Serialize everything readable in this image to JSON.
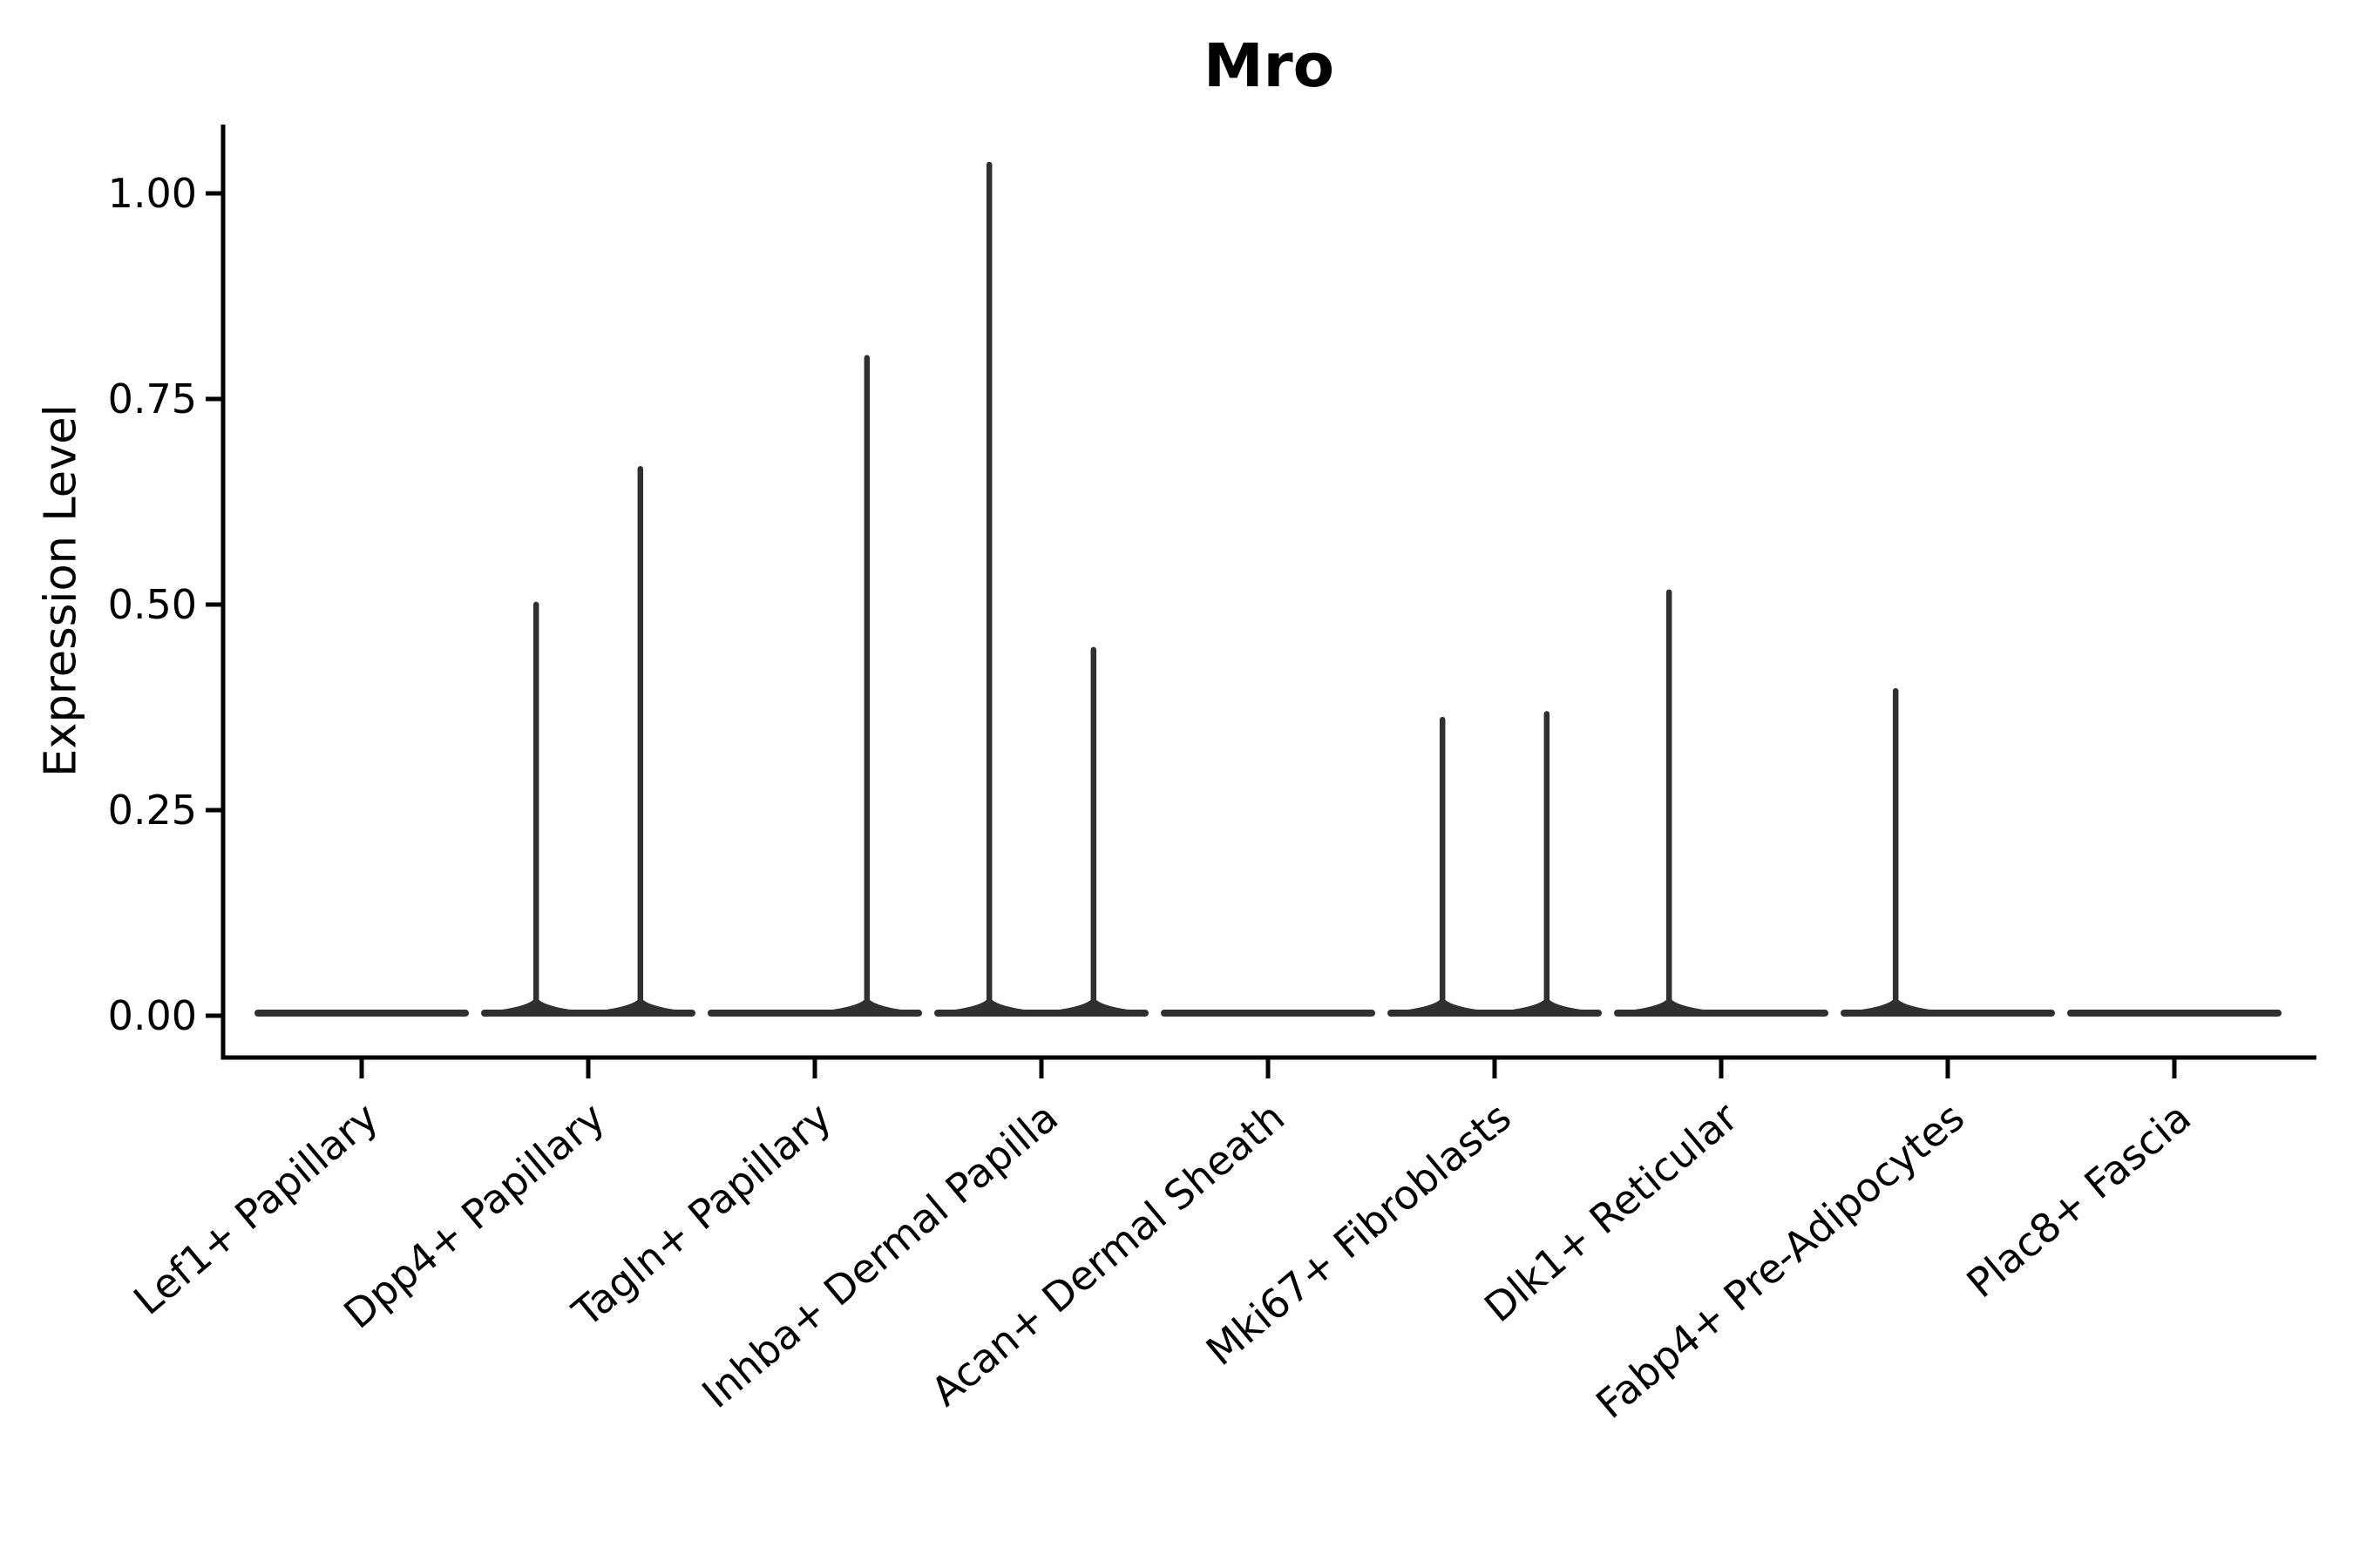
{
  "title": "Mro",
  "chart_data": {
    "type": "violin",
    "title": "Mro",
    "xlabel": "",
    "ylabel": "Expression Level",
    "ylim": [
      -0.05,
      1.08
    ],
    "grid": false,
    "legend": "none",
    "yticks": [
      0,
      0.25,
      0.5,
      0.75,
      1.0
    ],
    "ytick_labels": [
      "0.00",
      "0.25",
      "0.50",
      "0.75",
      "1.00"
    ],
    "categories": [
      "Lef1+ Papillary",
      "Dpp4+ Papillary",
      "Tagln+ Papillary",
      "Inhba+ Dermal Papilla",
      "Acan+ Dermal Sheath",
      "Mki67+ Fibroblasts",
      "Dlk1+ Reticular",
      "Fabp4+ Pre-Adipocytes",
      "Plac8+ Fascia"
    ],
    "series": [
      {
        "category": "Lef1+ Papillary",
        "zero_line": true,
        "spikes": []
      },
      {
        "category": "Dpp4+ Papillary",
        "zero_line": true,
        "spikes": [
          {
            "offset": -0.23,
            "value": 0.5
          },
          {
            "offset": 0.23,
            "value": 0.665
          }
        ]
      },
      {
        "category": "Tagln+ Papillary",
        "zero_line": true,
        "spikes": [
          {
            "offset": 0.23,
            "value": 0.8
          }
        ]
      },
      {
        "category": "Inhba+ Dermal Papilla",
        "zero_line": true,
        "spikes": [
          {
            "offset": -0.23,
            "value": 1.035
          },
          {
            "offset": 0.23,
            "value": 0.445
          }
        ]
      },
      {
        "category": "Acan+ Dermal Sheath",
        "zero_line": true,
        "spikes": []
      },
      {
        "category": "Mki67+ Fibroblasts",
        "zero_line": true,
        "spikes": [
          {
            "offset": -0.23,
            "value": 0.36
          },
          {
            "offset": 0.23,
            "value": 0.367
          }
        ]
      },
      {
        "category": "Dlk1+ Reticular",
        "zero_line": true,
        "spikes": [
          {
            "offset": -0.23,
            "value": 0.515
          }
        ]
      },
      {
        "category": "Fabp4+ Pre-Adipocytes",
        "zero_line": true,
        "spikes": [
          {
            "offset": -0.23,
            "value": 0.395
          }
        ]
      },
      {
        "category": "Plac8+ Fascia",
        "zero_line": true,
        "spikes": []
      }
    ],
    "style": {
      "violin_color": "#303030",
      "axis_color": "#000000",
      "background": "#ffffff",
      "x_label_rotation_deg": 40
    }
  }
}
